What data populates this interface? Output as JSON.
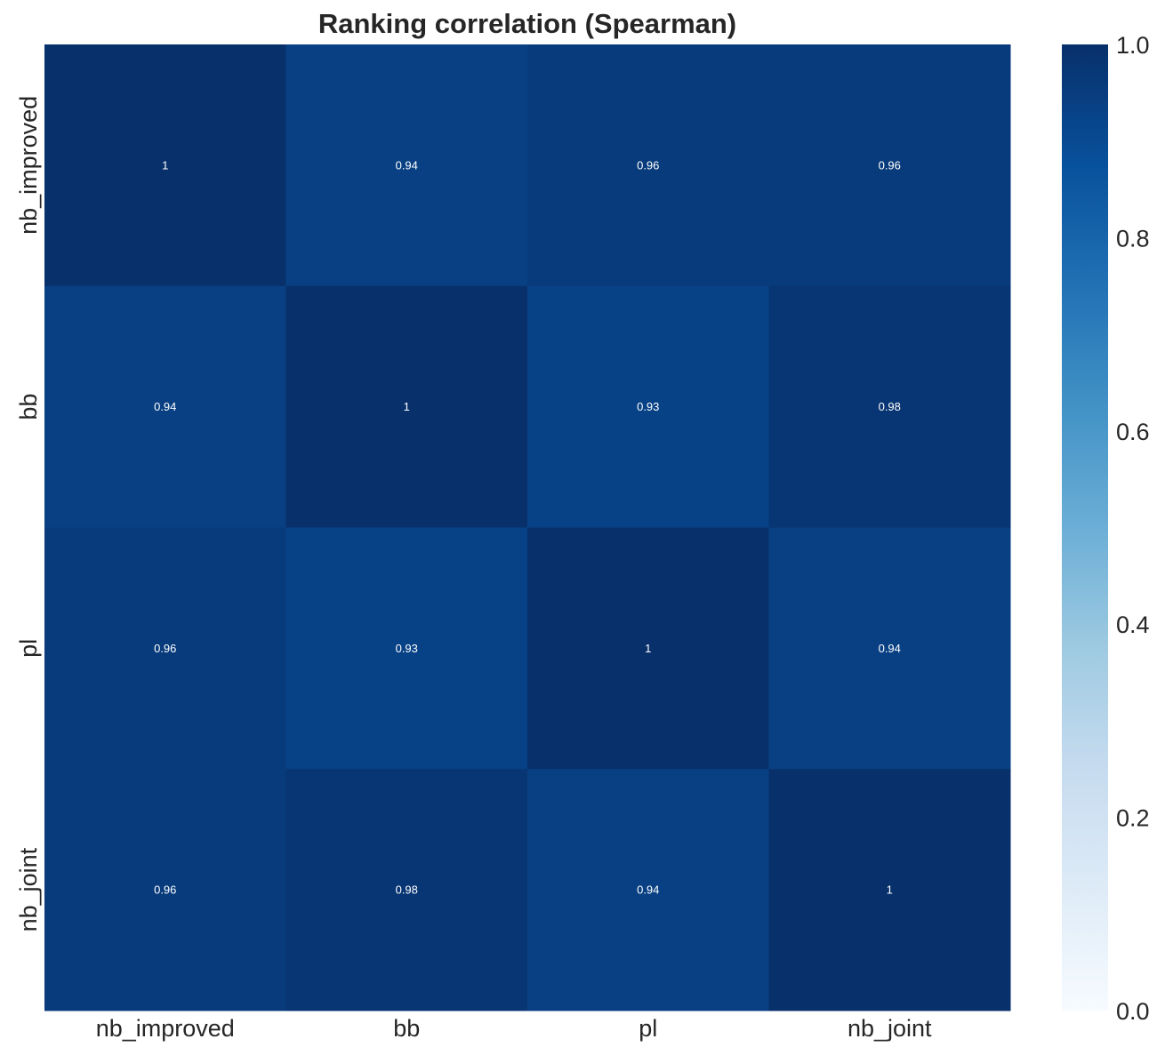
{
  "chart_data": {
    "type": "heatmap",
    "title": "Ranking correlation (Spearman)",
    "x_labels": [
      "nb_improved",
      "bb",
      "pl",
      "nb_joint"
    ],
    "y_labels": [
      "nb_improved",
      "bb",
      "pl",
      "nb_joint"
    ],
    "values": [
      [
        1.0,
        0.94,
        0.96,
        0.96
      ],
      [
        0.94,
        1.0,
        0.93,
        0.98
      ],
      [
        0.96,
        0.93,
        1.0,
        0.94
      ],
      [
        0.96,
        0.98,
        0.94,
        1.0
      ]
    ],
    "cell_labels": [
      [
        "1",
        "0.94",
        "0.96",
        "0.96"
      ],
      [
        "0.94",
        "1",
        "0.93",
        "0.98"
      ],
      [
        "0.96",
        "0.93",
        "1",
        "0.94"
      ],
      [
        "0.96",
        "0.98",
        "0.94",
        "1"
      ]
    ],
    "colormap": "Blues",
    "colormap_stops": [
      "#f7fbff",
      "#deebf7",
      "#c6dbef",
      "#9ecae1",
      "#6baed6",
      "#4292c6",
      "#2171b5",
      "#08519c",
      "#08306b"
    ],
    "vmin": 0.0,
    "vmax": 1.0,
    "colorbar_ticks": [
      "0.0",
      "0.2",
      "0.4",
      "0.6",
      "0.8",
      "1.0"
    ],
    "colorbar_tick_values": [
      0.0,
      0.2,
      0.4,
      0.6,
      0.8,
      1.0
    ],
    "grid": false,
    "colorbar_position": "right"
  }
}
